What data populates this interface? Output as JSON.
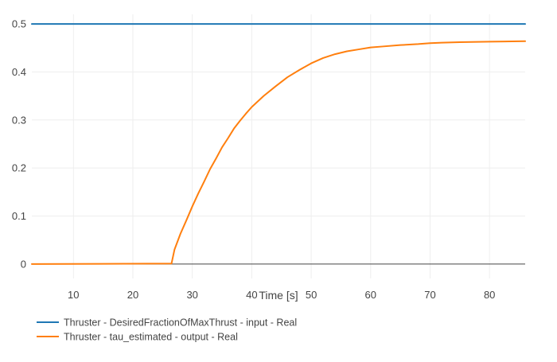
{
  "chart_data": {
    "type": "line",
    "title": "",
    "xlabel": "Time [s]",
    "ylabel": "",
    "xlim": [
      3,
      86
    ],
    "ylim": [
      -0.03,
      0.52
    ],
    "grid": true,
    "legend_placement": "bottom-left",
    "xticks": [
      "10",
      "20",
      "30",
      "40",
      "50",
      "60",
      "70",
      "80"
    ],
    "yticks": [
      "0",
      "0.1",
      "0.2",
      "0.3",
      "0.4",
      "0.5"
    ],
    "series": [
      {
        "name": "Thruster - DesiredFractionOfMaxThrust - input - Real",
        "color": "#1f77b4",
        "x": [
          3,
          86
        ],
        "y": [
          0.5,
          0.5
        ]
      },
      {
        "name": "Thruster - tau_estimated - output - Real",
        "color": "#ff7f0e",
        "x": [
          3,
          26.5,
          27,
          28,
          29,
          30,
          31,
          32,
          33,
          34,
          35,
          36,
          37,
          38,
          39,
          40,
          42,
          44,
          46,
          48,
          50,
          52,
          54,
          56,
          58,
          60,
          62,
          65,
          68,
          70,
          72,
          75,
          80,
          86
        ],
        "y": [
          0,
          0.001,
          0.03,
          0.063,
          0.091,
          0.12,
          0.147,
          0.172,
          0.198,
          0.22,
          0.243,
          0.262,
          0.282,
          0.298,
          0.313,
          0.327,
          0.35,
          0.37,
          0.389,
          0.404,
          0.418,
          0.429,
          0.437,
          0.443,
          0.447,
          0.451,
          0.453,
          0.456,
          0.458,
          0.46,
          0.461,
          0.462,
          0.463,
          0.464
        ]
      }
    ]
  }
}
